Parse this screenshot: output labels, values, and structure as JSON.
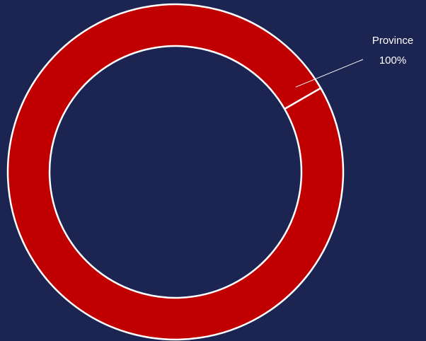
{
  "chart_data": {
    "type": "donut",
    "categories": [
      "Province"
    ],
    "values": [
      100
    ],
    "value_labels": [
      "100%"
    ],
    "colors": [
      "#c00000"
    ]
  }
}
